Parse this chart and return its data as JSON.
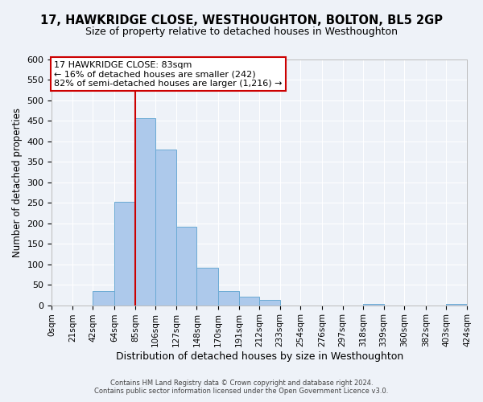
{
  "title": "17, HAWKRIDGE CLOSE, WESTHOUGHTON, BOLTON, BL5 2GP",
  "subtitle": "Size of property relative to detached houses in Westhoughton",
  "xlabel": "Distribution of detached houses by size in Westhoughton",
  "ylabel": "Number of detached properties",
  "bin_edges": [
    0,
    21,
    42,
    64,
    85,
    106,
    127,
    148,
    170,
    191,
    212,
    233,
    254,
    276,
    297,
    318,
    339,
    360,
    382,
    403,
    424
  ],
  "bin_heights": [
    0,
    0,
    35,
    252,
    457,
    380,
    192,
    92,
    35,
    20,
    12,
    0,
    0,
    0,
    0,
    4,
    0,
    0,
    0,
    4
  ],
  "bar_color": "#adc9eb",
  "bar_edge_color": "#6aaad4",
  "vline_x": 85,
  "vline_color": "#cc0000",
  "ylim": [
    0,
    600
  ],
  "ytick_step": 50,
  "annotation_text": "17 HAWKRIDGE CLOSE: 83sqm\n← 16% of detached houses are smaller (242)\n82% of semi-detached houses are larger (1,216) →",
  "annotation_box_color": "#ffffff",
  "annotation_box_edge": "#cc0000",
  "footer1": "Contains HM Land Registry data © Crown copyright and database right 2024.",
  "footer2": "Contains public sector information licensed under the Open Government Licence v3.0.",
  "tick_labels": [
    "0sqm",
    "21sqm",
    "42sqm",
    "64sqm",
    "85sqm",
    "106sqm",
    "127sqm",
    "148sqm",
    "170sqm",
    "191sqm",
    "212sqm",
    "233sqm",
    "254sqm",
    "276sqm",
    "297sqm",
    "318sqm",
    "339sqm",
    "360sqm",
    "382sqm",
    "403sqm",
    "424sqm"
  ],
  "background_color": "#eef2f8",
  "title_fontsize": 10.5,
  "subtitle_fontsize": 9,
  "ylabel_fontsize": 8.5,
  "xlabel_fontsize": 9,
  "annotation_fontsize": 8,
  "tick_fontsize": 7.5,
  "footer_fontsize": 6
}
